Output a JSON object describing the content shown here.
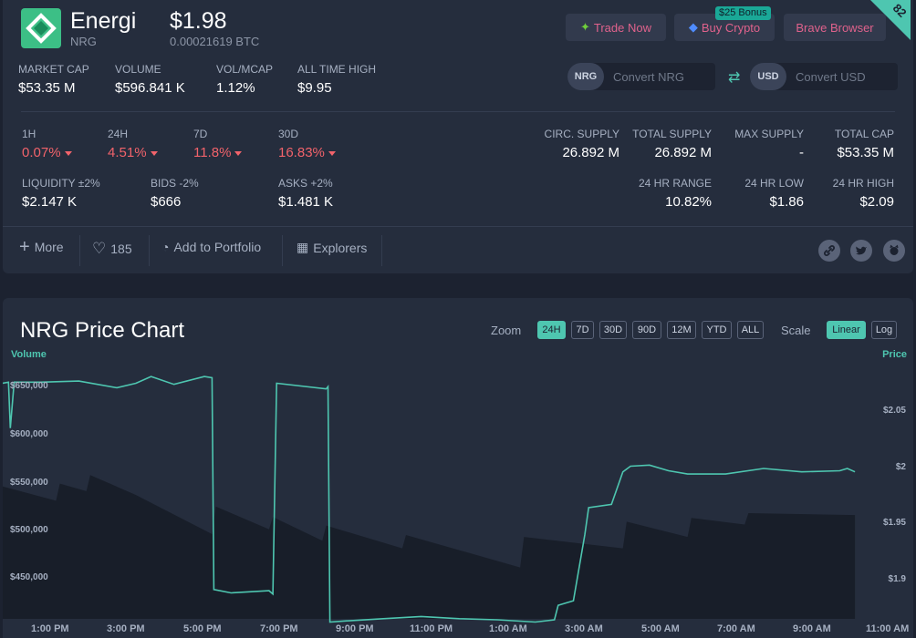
{
  "coin": {
    "name": "Energi",
    "symbol": "NRG",
    "price": "$1.98",
    "price_btc": "0.00021619 BTC",
    "rank": "82"
  },
  "top_buttons": {
    "trade": "Trade Now",
    "buy": "Buy Crypto",
    "bonus": "$25 Bonus",
    "brave": "Brave Browser"
  },
  "top_stats": [
    {
      "label": "MARKET CAP",
      "value": "$53.35 M"
    },
    {
      "label": "VOLUME",
      "value": "$596.841 K"
    },
    {
      "label": "VOL/MCAP",
      "value": "1.12%"
    },
    {
      "label": "ALL TIME HIGH",
      "value": "$9.95"
    }
  ],
  "converter": {
    "left_currency": "NRG",
    "left_placeholder": "Convert NRG",
    "right_currency": "USD",
    "right_placeholder": "Convert USD"
  },
  "changes": [
    {
      "label": "1H",
      "value": "0.07%"
    },
    {
      "label": "24H",
      "value": "4.51%"
    },
    {
      "label": "7D",
      "value": "11.8%"
    },
    {
      "label": "30D",
      "value": "16.83%"
    }
  ],
  "liquidity": [
    {
      "label": "LIQUIDITY ±2%",
      "value": "$2.147 K"
    },
    {
      "label": "BIDS -2%",
      "value": "$666"
    },
    {
      "label": "ASKS +2%",
      "value": "$1.481 K"
    }
  ],
  "supply": [
    {
      "label": "CIRC. SUPPLY",
      "value": "26.892 M"
    },
    {
      "label": "TOTAL SUPPLY",
      "value": "26.892 M"
    },
    {
      "label": "MAX SUPPLY",
      "value": "-"
    },
    {
      "label": "TOTAL CAP",
      "value": "$53.35 M"
    }
  ],
  "ranges": [
    {
      "label": "24 HR RANGE",
      "value": "10.82%"
    },
    {
      "label": "24 HR LOW",
      "value": "$1.86"
    },
    {
      "label": "24 HR HIGH",
      "value": "$2.09"
    }
  ],
  "actions": {
    "more": "More",
    "likes": "185",
    "portfolio": "Add to Portfolio",
    "explorers": "Explorers"
  },
  "chart": {
    "title": "NRG Price Chart",
    "zoom_label": "Zoom",
    "zoom_options": [
      "24H",
      "7D",
      "30D",
      "90D",
      "12M",
      "YTD",
      "ALL"
    ],
    "zoom_active": "24H",
    "scale_label": "Scale",
    "scale_options": [
      "Linear",
      "Log"
    ],
    "scale_active": "Linear",
    "left_axis_title": "Volume",
    "right_axis_title": "Price",
    "colors": {
      "price_line": "#4ec6b0",
      "volume_area": "#181e29",
      "accent": "#4ec6b0",
      "negative": "#f2636b"
    }
  },
  "chart_data": {
    "type": "line",
    "title": "NRG Price Chart",
    "x_ticks": [
      "1:00 PM",
      "3:00 PM",
      "5:00 PM",
      "7:00 PM",
      "9:00 PM",
      "11:00 PM",
      "1:00 AM",
      "3:00 AM",
      "5:00 AM",
      "7:00 AM",
      "9:00 AM",
      "11:00 AM"
    ],
    "y_left": {
      "label": "Volume",
      "ticks": [
        "$450,000",
        "$500,000",
        "$550,000",
        "$600,000",
        "$650,000"
      ]
    },
    "y_right": {
      "label": "Price",
      "ticks": [
        "$1.9",
        "$1.95",
        "$2",
        "$2.05"
      ]
    },
    "scale": "linear",
    "series": [
      {
        "axis": "left",
        "x_hours": [
          0,
          1.4,
          1.5,
          2.2,
          2.3,
          3.5,
          5.5,
          5.6,
          7.0,
          7.1,
          8.4,
          8.5,
          10.5,
          10.6,
          13.6,
          13.7,
          16.3,
          16.4,
          18.0,
          18.1,
          19.5,
          19.6,
          22.4
        ],
        "values": [
          545,
          530,
          548,
          540,
          557,
          536,
          495,
          524,
          500,
          513,
          488,
          504,
          480,
          494,
          460,
          492,
          480,
          508,
          492,
          512,
          505,
          517,
          515
        ]
      },
      {
        "axis": "right",
        "x_hours": [
          0,
          0.15,
          0.2,
          0.3,
          1.0,
          2.0,
          3.0,
          3.5,
          3.9,
          4.5,
          5.3,
          5.5,
          5.55,
          6.0,
          7.0,
          7.1,
          7.2,
          8.5,
          8.55,
          8.6,
          9.0,
          10.0,
          11.0,
          12.0,
          13.0,
          14.0,
          14.5,
          14.6,
          15.0,
          15.3,
          15.4,
          16.0,
          16.3,
          16.5,
          17.0,
          17.5,
          18.0,
          19.0,
          20.0,
          21.0,
          22.0,
          22.2,
          22.4
        ],
        "values": [
          2.076,
          2.077,
          2.036,
          2.077,
          2.077,
          2.078,
          2.072,
          2.076,
          2.082,
          2.075,
          2.082,
          2.081,
          1.892,
          1.889,
          1.891,
          1.888,
          2.076,
          2.071,
          2.073,
          1.863,
          1.864,
          1.866,
          1.868,
          1.866,
          1.865,
          1.863,
          1.865,
          1.878,
          1.882,
          1.941,
          1.965,
          1.968,
          1.997,
          2.002,
          2.003,
          1.998,
          1.995,
          1.995,
          2.0,
          1.997,
          1.998,
          2.0,
          1.997
        ]
      }
    ]
  }
}
